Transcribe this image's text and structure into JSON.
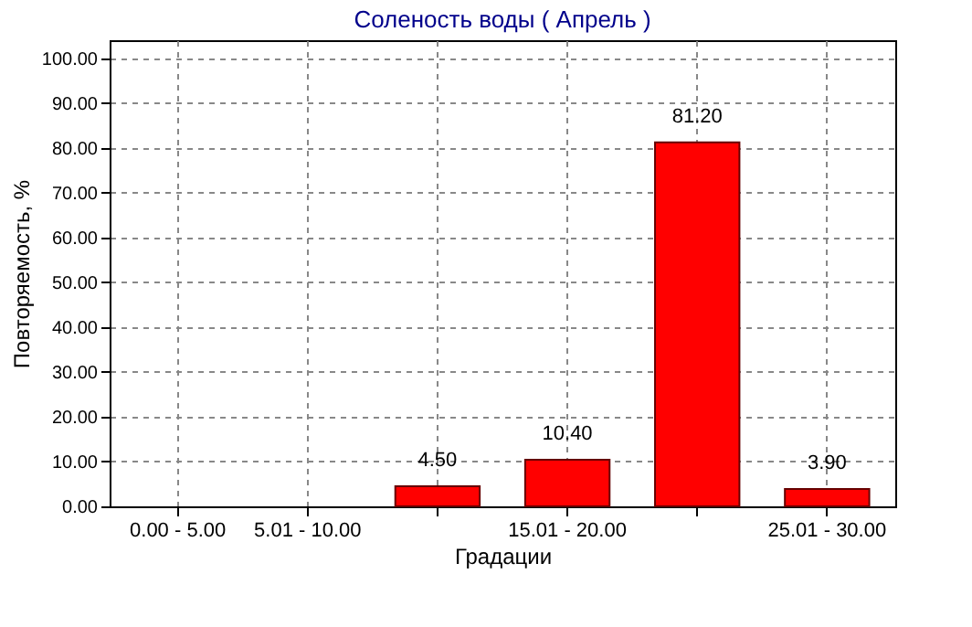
{
  "chart_data": {
    "type": "bar",
    "title": "Соленость воды    ( Апрель )",
    "xlabel": "Градации",
    "ylabel": "Повторяемость, %",
    "categories": [
      "0.00 - 5.00",
      "5.01 - 10.00",
      null,
      "15.01 - 20.00",
      null,
      "25.01 - 30.00"
    ],
    "values": [
      null,
      null,
      4.5,
      10.4,
      81.2,
      3.9
    ],
    "value_labels": [
      null,
      null,
      "4.50",
      "10.40",
      "81.20",
      "3.90"
    ],
    "color": "#ff0000",
    "ylim": [
      0,
      104
    ],
    "yticks": [
      {
        "value": 0,
        "label": "0.00"
      },
      {
        "value": 10,
        "label": "10.00"
      },
      {
        "value": 20,
        "label": "20.00"
      },
      {
        "value": 30,
        "label": "30.00"
      },
      {
        "value": 40,
        "label": "40.00"
      },
      {
        "value": 50,
        "label": "50.00"
      },
      {
        "value": 60,
        "label": "60.00"
      },
      {
        "value": 70,
        "label": "70.00"
      },
      {
        "value": 80,
        "label": "80.00"
      },
      {
        "value": 90,
        "label": "90.00"
      },
      {
        "value": 100,
        "label": "100.00"
      }
    ],
    "grid": true
  }
}
